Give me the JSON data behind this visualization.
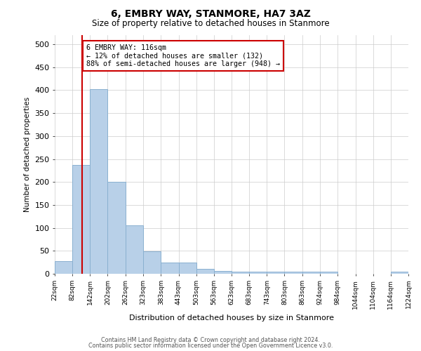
{
  "title": "6, EMBRY WAY, STANMORE, HA7 3AZ",
  "subtitle": "Size of property relative to detached houses in Stanmore",
  "xlabel": "Distribution of detached houses by size in Stanmore",
  "ylabel": "Number of detached properties",
  "bar_color": "#b8d0e8",
  "bar_edge_color": "#8ab0d0",
  "grid_color": "#cccccc",
  "background_color": "#ffffff",
  "annotation_box_color": "#cc0000",
  "vline_color": "#cc0000",
  "property_size": 116,
  "property_label": "6 EMBRY WAY: 116sqm",
  "annotation_line1": "← 12% of detached houses are smaller (132)",
  "annotation_line2": "88% of semi-detached houses are larger (948) →",
  "bin_edges": [
    22,
    82,
    142,
    202,
    262,
    323,
    383,
    443,
    503,
    563,
    623,
    683,
    743,
    803,
    863,
    924,
    984,
    1044,
    1104,
    1164,
    1224
  ],
  "bin_labels": [
    "22sqm",
    "82sqm",
    "142sqm",
    "202sqm",
    "262sqm",
    "323sqm",
    "383sqm",
    "443sqm",
    "503sqm",
    "563sqm",
    "623sqm",
    "683sqm",
    "743sqm",
    "803sqm",
    "863sqm",
    "924sqm",
    "984sqm",
    "1044sqm",
    "1104sqm",
    "1164sqm",
    "1224sqm"
  ],
  "bar_heights": [
    27,
    237,
    403,
    200,
    105,
    49,
    24,
    24,
    10,
    6,
    5,
    5,
    5,
    5,
    5,
    5,
    0,
    0,
    0,
    5
  ],
  "ylim": [
    0,
    520
  ],
  "yticks": [
    0,
    50,
    100,
    150,
    200,
    250,
    300,
    350,
    400,
    450,
    500
  ],
  "footer_line1": "Contains HM Land Registry data © Crown copyright and database right 2024.",
  "footer_line2": "Contains public sector information licensed under the Open Government Licence v3.0."
}
